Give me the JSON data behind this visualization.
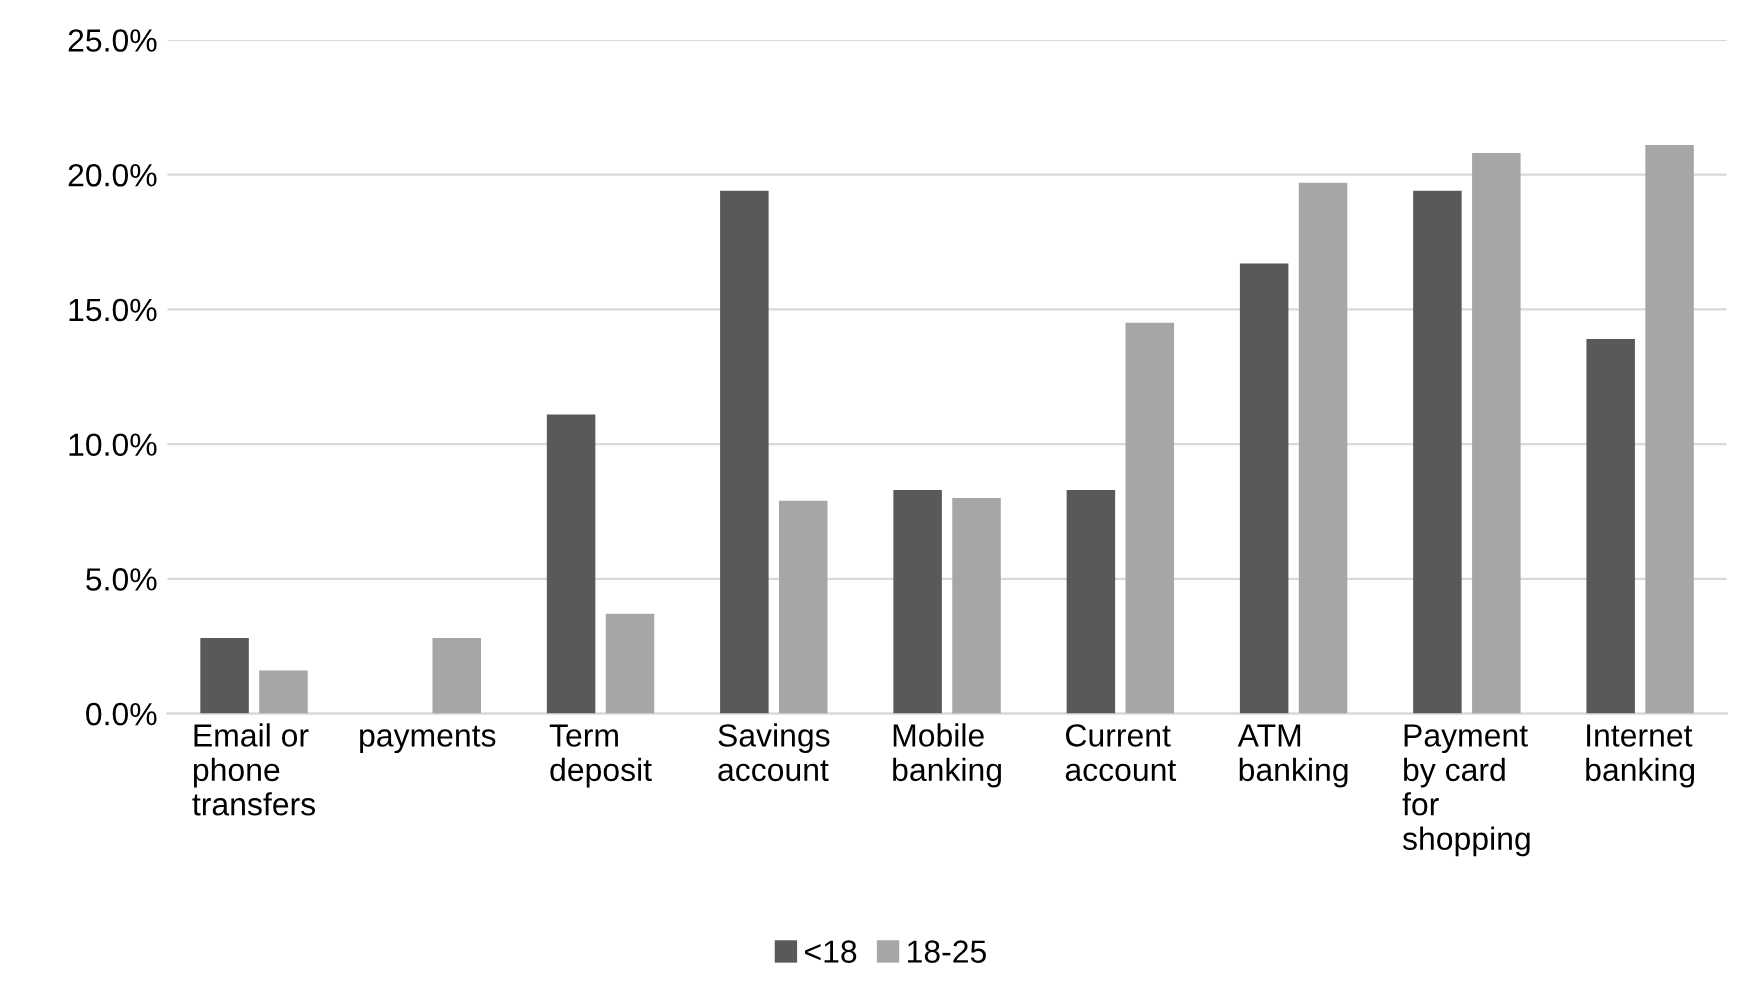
{
  "chart_data": {
    "type": "bar",
    "categories": [
      "Email or\nphone\ntransfers",
      "payments",
      "Term\ndeposit",
      "Savings\naccount",
      "Mobile\nbanking",
      "Current\naccount",
      "ATM\nbanking",
      "Payment\nby card\nfor\nshopping",
      "Internet\nbanking"
    ],
    "series": [
      {
        "name": "<18",
        "color": "#595959",
        "values": [
          2.8,
          0,
          11.1,
          19.4,
          8.3,
          8.3,
          16.7,
          19.4,
          13.9
        ]
      },
      {
        "name": "18-25",
        "color": "#a6a6a6",
        "values": [
          1.6,
          2.8,
          3.7,
          7.9,
          8.0,
          14.5,
          19.7,
          20.8,
          21.1
        ]
      }
    ],
    "ylim": [
      0,
      25
    ],
    "yticks": [
      {
        "value": 0,
        "label": "0.0%"
      },
      {
        "value": 5,
        "label": "5.0%"
      },
      {
        "value": 10,
        "label": "10.0%"
      },
      {
        "value": 15,
        "label": "15.0%"
      },
      {
        "value": 20,
        "label": "20.0%"
      },
      {
        "value": 25,
        "label": "25.0%"
      }
    ],
    "grid": "y",
    "legend": "bottom"
  }
}
